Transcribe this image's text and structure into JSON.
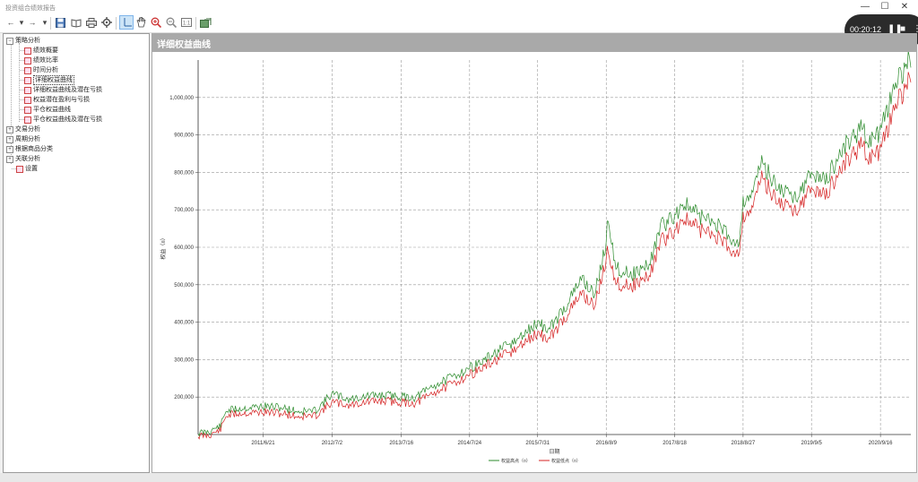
{
  "window": {
    "title": "投资组合绩效报告",
    "minimize": "—",
    "maximize": "☐",
    "close": "✕"
  },
  "toolbar": {
    "back": "←",
    "forward": "→",
    "dropdown": "▾",
    "zoom_level": ""
  },
  "recorder": {
    "time": "00:20:12",
    "pause": "❚❚",
    "stop": "■",
    "more": "⋮"
  },
  "tree": {
    "items": [
      {
        "label": "策略分析",
        "level": 0,
        "expander": "−",
        "icon": false
      },
      {
        "label": "绩效概要",
        "level": 1,
        "expander": "",
        "icon": true
      },
      {
        "label": "绩效比率",
        "level": 1,
        "expander": "",
        "icon": true
      },
      {
        "label": "时间分析",
        "level": 1,
        "expander": "",
        "icon": true
      },
      {
        "label": "详细权益曲线",
        "level": 1,
        "expander": "",
        "icon": true,
        "selected": true
      },
      {
        "label": "详细权益曲线及潜在亏损",
        "level": 1,
        "expander": "",
        "icon": true
      },
      {
        "label": "权益潜在盈利与亏损",
        "level": 1,
        "expander": "",
        "icon": true
      },
      {
        "label": "平仓权益曲线",
        "level": 1,
        "expander": "",
        "icon": true
      },
      {
        "label": "平仓权益曲线及潜在亏损",
        "level": 1,
        "expander": "",
        "icon": true
      },
      {
        "label": "交易分析",
        "level": 0,
        "expander": "+",
        "icon": false
      },
      {
        "label": "周期分析",
        "level": 0,
        "expander": "+",
        "icon": false
      },
      {
        "label": "根据商品分类",
        "level": 0,
        "expander": "+",
        "icon": false
      },
      {
        "label": "关联分析",
        "level": 0,
        "expander": "+",
        "icon": false
      },
      {
        "label": "设置",
        "level": 1,
        "expander": "",
        "icon": true
      }
    ]
  },
  "content": {
    "title": "详细权益曲线"
  },
  "chart_data": {
    "type": "line",
    "title": "详细权益曲线",
    "xlabel": "日期",
    "ylabel": "权益（¤）",
    "x_ticks": [
      "2011/6/21",
      "2012/7/2",
      "2013/7/16",
      "2014/7/24",
      "2015/7/31",
      "2016/8/9",
      "2017/8/18",
      "2018/8/27",
      "2019/9/5",
      "2020/9/16"
    ],
    "y_ticks": [
      "200,000",
      "300,000",
      "400,000",
      "500,000",
      "600,000",
      "700,000",
      "800,000",
      "900,000",
      "1,000,000"
    ],
    "ylim": [
      100000,
      1100000
    ],
    "xlim": [
      "2010/7/1",
      "2021/3/1"
    ],
    "grid": true,
    "legend_position": "bottom",
    "series": [
      {
        "name": "权益高点（¤）",
        "color": "#2a8a2a",
        "points": [
          [
            "2010/7/1",
            100000
          ],
          [
            "2010/9/1",
            105000
          ],
          [
            "2010/11/1",
            120000
          ],
          [
            "2010/12/1",
            160000
          ],
          [
            "2011/2/1",
            165000
          ],
          [
            "2011/6/21",
            172000
          ],
          [
            "2011/10/1",
            168000
          ],
          [
            "2012/1/1",
            158000
          ],
          [
            "2012/4/1",
            160000
          ],
          [
            "2012/7/2",
            205000
          ],
          [
            "2012/10/1",
            190000
          ],
          [
            "2013/1/1",
            198000
          ],
          [
            "2013/4/1",
            202000
          ],
          [
            "2013/7/16",
            198000
          ],
          [
            "2013/10/1",
            195000
          ],
          [
            "2014/1/1",
            225000
          ],
          [
            "2014/4/1",
            245000
          ],
          [
            "2014/7/24",
            275000
          ],
          [
            "2014/10/1",
            290000
          ],
          [
            "2015/1/1",
            320000
          ],
          [
            "2015/4/1",
            345000
          ],
          [
            "2015/6/1",
            370000
          ],
          [
            "2015/7/31",
            395000
          ],
          [
            "2015/10/1",
            375000
          ],
          [
            "2016/1/1",
            440000
          ],
          [
            "2016/4/1",
            515000
          ],
          [
            "2016/6/1",
            470000
          ],
          [
            "2016/7/1",
            520000
          ],
          [
            "2016/8/9",
            610000
          ],
          [
            "2016/8/20",
            680000
          ],
          [
            "2016/10/1",
            540000
          ],
          [
            "2017/1/1",
            525000
          ],
          [
            "2017/4/1",
            550000
          ],
          [
            "2017/6/1",
            650000
          ],
          [
            "2017/8/18",
            680000
          ],
          [
            "2017/10/1",
            715000
          ],
          [
            "2018/1/1",
            680000
          ],
          [
            "2018/4/1",
            660000
          ],
          [
            "2018/7/1",
            620000
          ],
          [
            "2018/8/1",
            605000
          ],
          [
            "2018/8/27",
            715000
          ],
          [
            "2018/11/1",
            760000
          ],
          [
            "2018/12/1",
            825000
          ],
          [
            "2019/3/1",
            760000
          ],
          [
            "2019/6/1",
            730000
          ],
          [
            "2019/9/5",
            790000
          ],
          [
            "2019/12/1",
            780000
          ],
          [
            "2020/3/1",
            870000
          ],
          [
            "2020/6/1",
            910000
          ],
          [
            "2020/8/1",
            880000
          ],
          [
            "2020/9/16",
            900000
          ],
          [
            "2020/11/1",
            980000
          ],
          [
            "2021/1/1",
            1050000
          ],
          [
            "2021/2/15",
            1100000
          ],
          [
            "2021/3/1",
            1080000
          ]
        ]
      },
      {
        "name": "权益低点（¤）",
        "color": "#d42020",
        "points": [
          [
            "2010/7/1",
            98000
          ],
          [
            "2010/9/1",
            100000
          ],
          [
            "2010/11/1",
            115000
          ],
          [
            "2010/12/1",
            152000
          ],
          [
            "2011/2/1",
            158000
          ],
          [
            "2011/6/21",
            162000
          ],
          [
            "2011/10/1",
            158000
          ],
          [
            "2012/1/1",
            150000
          ],
          [
            "2012/4/1",
            152000
          ],
          [
            "2012/7/2",
            188000
          ],
          [
            "2012/10/1",
            180000
          ],
          [
            "2013/1/1",
            188000
          ],
          [
            "2013/4/1",
            192000
          ],
          [
            "2013/7/16",
            188000
          ],
          [
            "2013/10/1",
            185000
          ],
          [
            "2014/1/1",
            212000
          ],
          [
            "2014/4/1",
            232000
          ],
          [
            "2014/7/24",
            262000
          ],
          [
            "2014/10/1",
            278000
          ],
          [
            "2015/1/1",
            305000
          ],
          [
            "2015/4/1",
            328000
          ],
          [
            "2015/6/1",
            352000
          ],
          [
            "2015/7/31",
            372000
          ],
          [
            "2015/10/1",
            355000
          ],
          [
            "2016/1/1",
            418000
          ],
          [
            "2016/4/1",
            480000
          ],
          [
            "2016/6/1",
            445000
          ],
          [
            "2016/7/1",
            490000
          ],
          [
            "2016/8/9",
            570000
          ],
          [
            "2016/8/20",
            600000
          ],
          [
            "2016/10/1",
            505000
          ],
          [
            "2017/1/1",
            500000
          ],
          [
            "2017/4/1",
            525000
          ],
          [
            "2017/6/1",
            615000
          ],
          [
            "2017/8/18",
            645000
          ],
          [
            "2017/10/1",
            680000
          ],
          [
            "2018/1/1",
            650000
          ],
          [
            "2018/4/1",
            632000
          ],
          [
            "2018/7/1",
            595000
          ],
          [
            "2018/8/1",
            585000
          ],
          [
            "2018/8/27",
            680000
          ],
          [
            "2018/11/1",
            725000
          ],
          [
            "2018/12/1",
            790000
          ],
          [
            "2019/3/1",
            728000
          ],
          [
            "2019/6/1",
            700000
          ],
          [
            "2019/9/5",
            755000
          ],
          [
            "2019/12/1",
            745000
          ],
          [
            "2020/3/1",
            830000
          ],
          [
            "2020/6/1",
            870000
          ],
          [
            "2020/8/1",
            840000
          ],
          [
            "2020/9/16",
            855000
          ],
          [
            "2020/11/1",
            930000
          ],
          [
            "2021/1/1",
            1000000
          ],
          [
            "2021/2/15",
            1050000
          ],
          [
            "2021/3/1",
            1040000
          ]
        ]
      }
    ]
  }
}
